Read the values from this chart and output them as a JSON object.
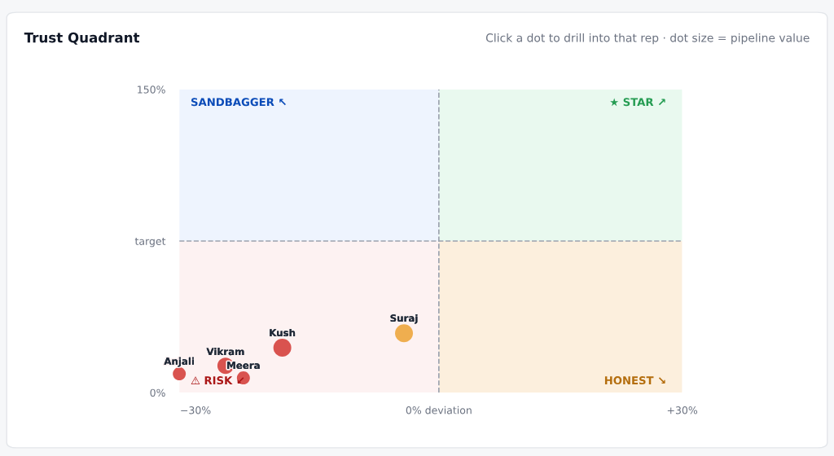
{
  "chart_data": {
    "type": "bubble",
    "title": "Trust Quadrant",
    "annotations": [
      "Click a dot to drill into that rep · dot size = pipeline value"
    ],
    "xlim": [
      -32,
      30
    ],
    "ylim": [
      0,
      150
    ],
    "xticks": [
      {
        "value": -30,
        "label": "−30%"
      },
      {
        "value": 0,
        "label": "0% deviation"
      },
      {
        "value": 30,
        "label": "+30%"
      }
    ],
    "yticks": [
      {
        "value": 0,
        "label": "0%"
      },
      {
        "value": 75,
        "label": "target"
      },
      {
        "value": 150,
        "label": "150%"
      }
    ],
    "ref_lines": [
      {
        "axis": "x",
        "value": 0,
        "color": "#9ca3af",
        "line_style": "dashed"
      },
      {
        "axis": "y",
        "value": 75,
        "color": "#9ca3af",
        "line_style": "dashed"
      }
    ],
    "bands": [
      {
        "axis": "y",
        "from": 75,
        "to": 150,
        "label": "SANDBAGGER ↖",
        "color": "#eef4fe"
      },
      {
        "axis": "y",
        "from": 75,
        "to": 150,
        "label": "★ STAR ↗",
        "color": "#e9f9ef"
      },
      {
        "axis": "y",
        "from": 0,
        "to": 75,
        "label": "⚠ RISK ↙",
        "color": "#fdf2f2"
      },
      {
        "axis": "y",
        "from": 0,
        "to": 75,
        "label": "HONEST ↘",
        "color": "#fcefdd"
      }
    ],
    "series": [
      {
        "name": "Anjali",
        "color": "#d9534f",
        "x": [
          -32
        ],
        "values": [
          9.3
        ],
        "sizes": [
          0.53
        ]
      },
      {
        "name": "Vikram",
        "color": "#d9534f",
        "x": [
          -26.3
        ],
        "values": [
          13.3
        ],
        "sizes": [
          0.83
        ]
      },
      {
        "name": "Meera",
        "color": "#d9534f",
        "x": [
          -24.1
        ],
        "values": [
          7.3
        ],
        "sizes": [
          0.53
        ]
      },
      {
        "name": "Kush",
        "color": "#d9534f",
        "x": [
          -19.3
        ],
        "values": [
          22.2
        ],
        "sizes": [
          1
        ]
      },
      {
        "name": "Suraj",
        "color": "#efae4f",
        "x": [
          -4.3
        ],
        "values": [
          29.4
        ],
        "sizes": [
          1
        ]
      }
    ]
  }
}
